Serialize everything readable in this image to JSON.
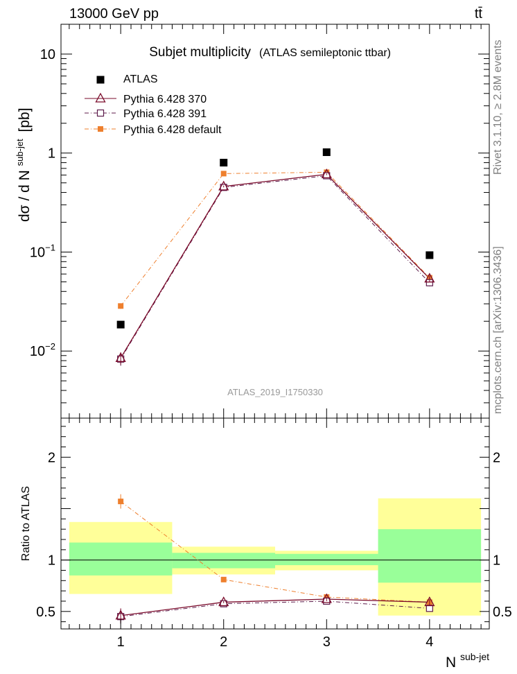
{
  "header": {
    "left": "13000 GeV pp",
    "right": "tt̄"
  },
  "side_labels": {
    "rivet": "Rivet 3.1.10, ≥ 2.8M events",
    "mcplots": "mcplots.cern.ch [arXiv:1306.3436]"
  },
  "chart_data": [
    {
      "type": "scatter",
      "panel": "main",
      "title": "Subjet multiplicity",
      "subtitle": "(ATLAS semileptonic ttbar)",
      "ylabel_main": "dσ / d N",
      "ylabel_sup": "sub-jet",
      "ylabel_unit": "[pb]",
      "yscale": "log",
      "ylim": [
        0.0021,
        20
      ],
      "xlim": [
        0.42,
        4.58
      ],
      "ytick_labels": [
        {
          "value": 10,
          "base": "10",
          "exp": ""
        },
        {
          "value": 1,
          "base": "1",
          "exp": ""
        },
        {
          "value": 0.1,
          "base": "10",
          "exp": "−1"
        },
        {
          "value": 0.01,
          "base": "10",
          "exp": "−2"
        }
      ],
      "watermark": "ATLAS_2019_I1750330",
      "x": [
        1,
        2,
        3,
        4
      ],
      "series": [
        {
          "name": "ATLAS",
          "values": [
            0.0185,
            0.8,
            1.02,
            0.093
          ],
          "color": "#000000",
          "marker": "square",
          "line": "none"
        },
        {
          "name": "Pythia 6.428 370",
          "values": [
            0.0085,
            0.46,
            0.61,
            0.054
          ],
          "errors": [
            0.0012,
            0.01,
            0.012,
            0.004
          ],
          "color": "#7a0a2a",
          "marker": "triangle",
          "line": "solid"
        },
        {
          "name": "Pythia 6.428 391",
          "values": [
            0.0083,
            0.45,
            0.59,
            0.049
          ],
          "errors": [
            0.0012,
            0.01,
            0.012,
            0.004
          ],
          "color": "#5c1a4a",
          "marker": "open-square",
          "line": "dashdot"
        },
        {
          "name": "Pythia 6.428 default",
          "values": [
            0.0285,
            0.62,
            0.64,
            0.055
          ],
          "errors": [
            0.0018,
            0.01,
            0.012,
            0.004
          ],
          "color": "#ee7f2d",
          "marker": "filled-square",
          "line": "dashdot"
        }
      ]
    },
    {
      "type": "scatter",
      "panel": "ratio",
      "ylabel": "Ratio to ATLAS",
      "xlabel_main": "N",
      "xlabel_sup": "sub-jet",
      "ylim": [
        0.33,
        2.38
      ],
      "xlim": [
        0.42,
        4.58
      ],
      "xtick_labels": [
        "1",
        "2",
        "3",
        "4"
      ],
      "ytick_labels": [
        "0.5",
        "1",
        "2"
      ],
      "ytick_values": [
        0.5,
        1,
        2
      ],
      "bands": [
        {
          "xlo": 0.5,
          "xhi": 1.5,
          "stat_lo": 0.85,
          "stat_hi": 1.17,
          "tot_lo": 0.67,
          "tot_hi": 1.37
        },
        {
          "xlo": 1.5,
          "xhi": 2.5,
          "stat_lo": 0.92,
          "stat_hi": 1.07,
          "tot_lo": 0.86,
          "tot_hi": 1.13
        },
        {
          "xlo": 2.5,
          "xhi": 3.5,
          "stat_lo": 0.95,
          "stat_hi": 1.06,
          "tot_lo": 0.9,
          "tot_hi": 1.09
        },
        {
          "xlo": 3.5,
          "xhi": 4.5,
          "stat_lo": 0.78,
          "stat_hi": 1.3,
          "tot_lo": 0.46,
          "tot_hi": 1.6
        }
      ],
      "x": [
        1,
        2,
        3,
        4
      ],
      "series": [
        {
          "name": "Pythia 6.428 370",
          "values": [
            0.46,
            0.59,
            0.62,
            0.59
          ],
          "errors": [
            0.07,
            0.01,
            0.02,
            0.03
          ]
        },
        {
          "name": "Pythia 6.428 391",
          "values": [
            0.45,
            0.575,
            0.6,
            0.53
          ],
          "errors": [
            0.07,
            0.01,
            0.02,
            0.03
          ]
        },
        {
          "name": "Pythia 6.428 default",
          "values": [
            1.57,
            0.81,
            0.64,
            0.59
          ],
          "errors": [
            0.07,
            0.01,
            0.01,
            0.03
          ]
        }
      ]
    }
  ],
  "colors": {
    "band_stat": "#99ff99",
    "band_total": "#ffff99",
    "atlas": "#000000",
    "p370": "#7a0a2a",
    "p391": "#5c1a4a",
    "pdefault": "#ee7f2d"
  }
}
